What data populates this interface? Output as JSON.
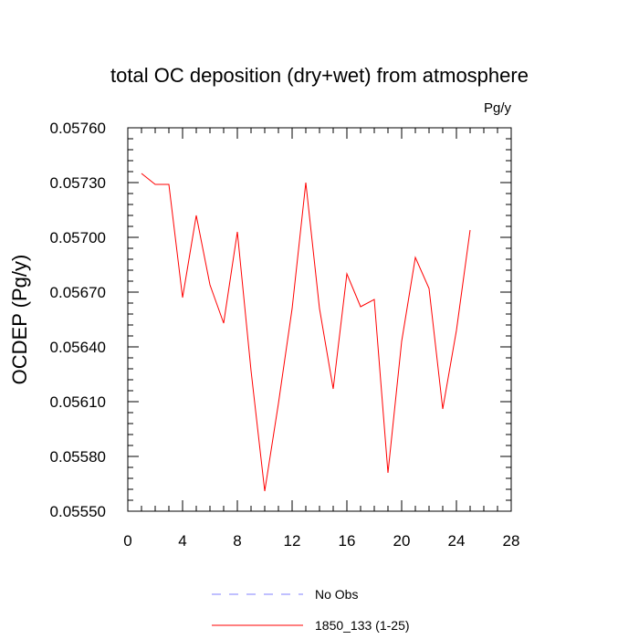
{
  "chart_data": {
    "type": "line",
    "title": "total OC deposition (dry+wet) from atmosphere",
    "units": "Pg/y",
    "ylabel": "OCDEP  (Pg/y)",
    "xlabel": "",
    "xlim": [
      0,
      28
    ],
    "ylim": [
      0.0555,
      0.0576
    ],
    "x_ticks": [
      "0",
      "4",
      "8",
      "12",
      "16",
      "20",
      "24",
      "28"
    ],
    "y_ticks": [
      "0.05550",
      "0.05580",
      "0.05610",
      "0.05640",
      "0.05670",
      "0.05700",
      "0.05730",
      "0.05760"
    ],
    "grid": false,
    "legend_position": "bottom",
    "series": [
      {
        "name": "No Obs",
        "color": "#8080ff",
        "style": "dashed",
        "x": [],
        "values": []
      },
      {
        "name": "1850_133 (1-25)",
        "color": "#ff0000",
        "style": "solid",
        "x": [
          1,
          2,
          3,
          4,
          5,
          6,
          7,
          8,
          9,
          10,
          11,
          12,
          13,
          14,
          15,
          16,
          17,
          18,
          19,
          20,
          21,
          22,
          23,
          24,
          25
        ],
        "values": [
          0.05735,
          0.05729,
          0.05729,
          0.05667,
          0.05712,
          0.05674,
          0.05653,
          0.05703,
          0.05627,
          0.05561,
          0.05609,
          0.05661,
          0.0573,
          0.05661,
          0.05617,
          0.0568,
          0.05662,
          0.05666,
          0.05571,
          0.05643,
          0.05689,
          0.05672,
          0.05606,
          0.05649,
          0.05704
        ]
      }
    ]
  }
}
